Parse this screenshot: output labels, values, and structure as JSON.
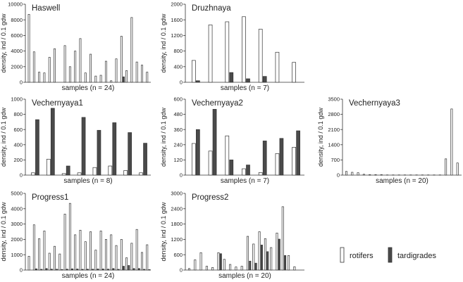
{
  "colors": {
    "rotifers": "#ffffff",
    "tardigrades": "#4a4a4a",
    "stroke": "#333333"
  },
  "legend": {
    "position": "bottom-right",
    "items": [
      {
        "key": "rotifers",
        "label": "rotifers"
      },
      {
        "key": "tardigrades",
        "label": "tardigrades"
      }
    ]
  },
  "chart_data": [
    {
      "type": "bar",
      "title": "Haswell",
      "xlabel": "samples (n = 24)",
      "ylabel": "density, ind / 0.1 gdw",
      "ylim": [
        0,
        10000
      ],
      "yticks": [
        "0",
        "2000",
        "4000",
        "6000",
        "8000",
        "10000"
      ],
      "series": [
        {
          "key": "rotifers",
          "values": [
            8700,
            3900,
            1300,
            1200,
            3200,
            4300,
            0,
            4700,
            2000,
            4000,
            5600,
            1200,
            3600,
            800,
            900,
            2700,
            200,
            3000,
            5900,
            1500,
            8300,
            2600,
            2200,
            1300
          ]
        },
        {
          "key": "tardigrades",
          "values": [
            0,
            0,
            0,
            0,
            0,
            0,
            0,
            0,
            0,
            0,
            0,
            0,
            0,
            0,
            0,
            0,
            0,
            0,
            700,
            0,
            0,
            0,
            0,
            0
          ]
        }
      ]
    },
    {
      "type": "bar",
      "title": "Druzhnaya",
      "xlabel": "samples (n = 7)",
      "ylabel": "density, ind / 0.1 gdw",
      "ylim": [
        0,
        2000
      ],
      "yticks": [
        "0",
        "400",
        "800",
        "1200",
        "1600",
        "2000"
      ],
      "series": [
        {
          "key": "rotifers",
          "values": [
            560,
            1470,
            1550,
            1680,
            1360,
            770,
            510
          ]
        },
        {
          "key": "tardigrades",
          "values": [
            40,
            0,
            250,
            90,
            150,
            0,
            0
          ]
        }
      ]
    },
    {
      "type": "bar",
      "title": "Vechernyaya1",
      "xlabel": "samples (n = 8)",
      "ylabel": "density, ind / 0.1 gdw",
      "ylim": [
        0,
        1000
      ],
      "yticks": [
        "0",
        "200",
        "400",
        "600",
        "800",
        "1000"
      ],
      "series": [
        {
          "key": "rotifers",
          "values": [
            30,
            210,
            20,
            30,
            100,
            120,
            60,
            30
          ]
        },
        {
          "key": "tardigrades",
          "values": [
            730,
            880,
            120,
            760,
            590,
            690,
            560,
            420
          ]
        }
      ]
    },
    {
      "type": "bar",
      "title": "Vechernyaya2",
      "xlabel": "samples (n = 7)",
      "ylabel": "density, ind / 0.1 gdw",
      "ylim": [
        0,
        600
      ],
      "yticks": [
        "0",
        "120",
        "240",
        "360",
        "480",
        "600"
      ],
      "series": [
        {
          "key": "rotifers",
          "values": [
            250,
            190,
            310,
            50,
            20,
            170,
            220
          ]
        },
        {
          "key": "tardigrades",
          "values": [
            360,
            520,
            120,
            80,
            270,
            290,
            350
          ]
        }
      ]
    },
    {
      "type": "bar",
      "title": "Vechernyaya3",
      "xlabel": "samples (n = 20)",
      "ylabel": "density, ind / 0.1 gdw",
      "ylim": [
        0,
        3500
      ],
      "yticks": [
        "0",
        "700",
        "1400",
        "2100",
        "2800",
        "3500"
      ],
      "series": [
        {
          "key": "rotifers",
          "values": [
            170,
            130,
            110,
            40,
            20,
            20,
            20,
            10,
            10,
            10,
            10,
            10,
            10,
            10,
            10,
            10,
            10,
            750,
            3050,
            560
          ]
        },
        {
          "key": "tardigrades",
          "values": [
            0,
            0,
            0,
            0,
            0,
            0,
            0,
            0,
            0,
            0,
            0,
            0,
            0,
            0,
            0,
            0,
            0,
            0,
            0,
            0
          ]
        }
      ]
    },
    {
      "type": "bar",
      "title": "Progress1",
      "xlabel": "samples (n = 24)",
      "ylabel": "density, ind / 0.1 gdw",
      "ylim": [
        0,
        5000
      ],
      "yticks": [
        "0",
        "1000",
        "2000",
        "3000",
        "4000",
        "5000"
      ],
      "series": [
        {
          "key": "rotifers",
          "values": [
            900,
            2950,
            2050,
            2550,
            1100,
            1550,
            1050,
            3650,
            4350,
            2300,
            2600,
            1850,
            2500,
            1300,
            2550,
            2000,
            2300,
            1600,
            2000,
            800,
            1750,
            2650,
            1150,
            1650
          ]
        },
        {
          "key": "tardigrades",
          "values": [
            0,
            80,
            50,
            100,
            60,
            60,
            40,
            60,
            80,
            70,
            50,
            60,
            60,
            70,
            70,
            60,
            100,
            50,
            250,
            300,
            100,
            100,
            50,
            30
          ]
        }
      ]
    },
    {
      "type": "bar",
      "title": "Progress2",
      "xlabel": "samples (n = 20)",
      "ylabel": "density, ind / 0.1 gdw",
      "ylim": [
        0,
        3000
      ],
      "yticks": [
        "0",
        "600",
        "1200",
        "1800",
        "2400",
        "3000"
      ],
      "series": [
        {
          "key": "rotifers",
          "values": [
            60,
            400,
            680,
            150,
            100,
            680,
            420,
            220,
            120,
            150,
            1320,
            1020,
            1500,
            1230,
            880,
            1450,
            2480,
            570,
            130,
            0
          ]
        },
        {
          "key": "tardigrades",
          "values": [
            0,
            0,
            0,
            0,
            0,
            640,
            0,
            0,
            0,
            0,
            350,
            270,
            980,
            720,
            0,
            1210,
            570,
            0,
            0,
            0
          ]
        }
      ]
    }
  ]
}
